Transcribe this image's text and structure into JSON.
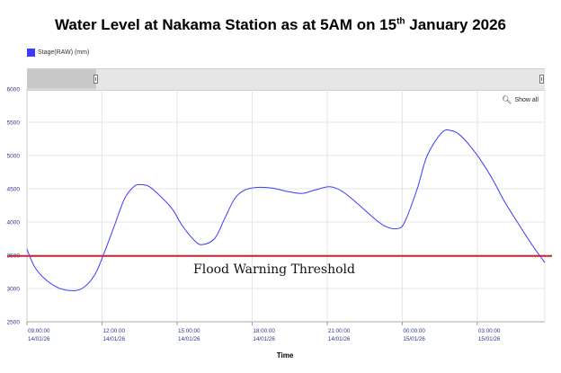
{
  "title": {
    "main": "Water Level at Nakama Station as at 5AM on 15",
    "sup": "th",
    "tail": " January 2026"
  },
  "legend": {
    "label": "Stage(RAW) (mm)",
    "color": "#3b3bff"
  },
  "show_all": "Show all",
  "threshold": {
    "label": "Flood Warning Threshold",
    "value": 3490,
    "color": "#c1272d"
  },
  "chart_data": {
    "type": "line",
    "title": "Water Level at Nakama Station as at 5AM on 15th January 2026",
    "xlabel": "Time",
    "ylabel": "",
    "ylim": [
      2500,
      6000
    ],
    "yticks": [
      "2500",
      "3000",
      "3500",
      "4000",
      "4500",
      "5000",
      "5500",
      "6000"
    ],
    "xlim_hours": [
      0,
      20.7
    ],
    "xticks": [
      {
        "h": 0,
        "time": "09:00:00",
        "date": "14/01/26"
      },
      {
        "h": 3,
        "time": "12:00:00",
        "date": "14/01/26"
      },
      {
        "h": 6,
        "time": "15:00:00",
        "date": "14/01/26"
      },
      {
        "h": 9,
        "time": "18:00:00",
        "date": "14/01/26"
      },
      {
        "h": 12,
        "time": "21:00:00",
        "date": "14/01/26"
      },
      {
        "h": 15,
        "time": "00:00:00",
        "date": "15/01/26"
      },
      {
        "h": 18,
        "time": "03:00:00",
        "date": "15/01/26"
      }
    ],
    "series": [
      {
        "name": "Stage(RAW) (mm)",
        "color": "#3b3bff",
        "x_hours": [
          0,
          0.3,
          0.7,
          1.2,
          1.7,
          2.2,
          2.7,
          3.1,
          3.5,
          3.9,
          4.3,
          4.6,
          4.9,
          5.3,
          5.8,
          6.2,
          6.7,
          7.0,
          7.5,
          7.9,
          8.3,
          8.7,
          9.2,
          9.8,
          10.4,
          11.0,
          11.5,
          12.1,
          12.6,
          13.2,
          13.8,
          14.3,
          14.8,
          15.1,
          15.6,
          16.0,
          16.6,
          17.0,
          17.3,
          17.7,
          18.1,
          18.6,
          19.1,
          19.6,
          20.2,
          20.7
        ],
        "values": [
          3590,
          3330,
          3150,
          3020,
          2970,
          3000,
          3200,
          3550,
          3950,
          4350,
          4540,
          4560,
          4530,
          4400,
          4200,
          3950,
          3720,
          3660,
          3750,
          4050,
          4350,
          4480,
          4520,
          4510,
          4460,
          4430,
          4480,
          4530,
          4460,
          4280,
          4080,
          3940,
          3900,
          4000,
          4500,
          5000,
          5350,
          5370,
          5310,
          5150,
          4950,
          4650,
          4300,
          4000,
          3650,
          3390
        ]
      }
    ]
  }
}
